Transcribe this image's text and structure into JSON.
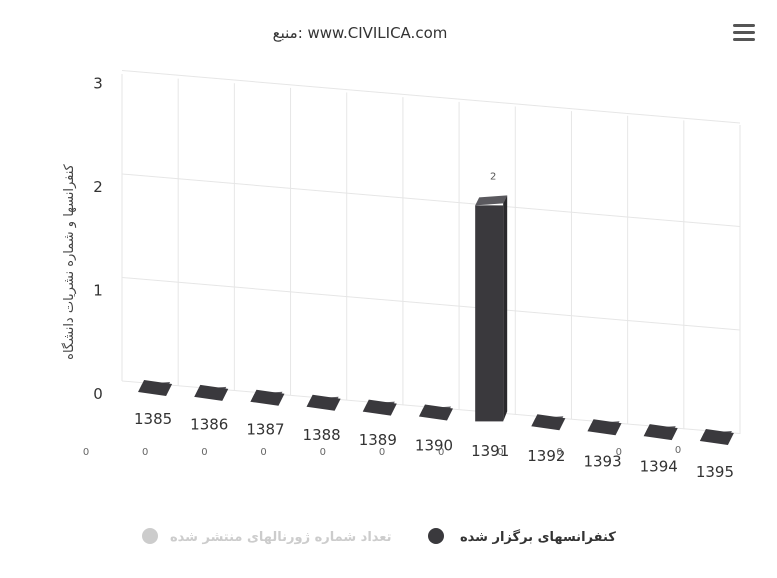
{
  "chart_data": {
    "type": "bar",
    "title": "منبع: www.CIVILICA.com",
    "ylabel": "کنفرانسها و شماره نشریات دانشگاه",
    "xlabel": "",
    "categories": [
      "1385",
      "1386",
      "1387",
      "1388",
      "1389",
      "1390",
      "1391",
      "1392",
      "1393",
      "1394",
      "1395"
    ],
    "y_ticks": [
      "0",
      "1",
      "2",
      "3"
    ],
    "ylim": [
      0,
      3
    ],
    "grid": true,
    "legend_position": "bottom",
    "series": [
      {
        "name": "کنفرانسهای برگزار شده",
        "values": [
          0,
          0,
          0,
          0,
          0,
          0,
          2,
          0,
          0,
          0,
          0
        ],
        "color": "#3a393d",
        "visible": true
      },
      {
        "name": "تعداد شماره ژورنالهای منتشر شده",
        "values": [
          0,
          0,
          0,
          0,
          0,
          0,
          0,
          0,
          0,
          0,
          0
        ],
        "color": "#cccccc",
        "visible": false
      }
    ],
    "data_labels": {
      "bar": [
        "2"
      ],
      "zero_row": [
        "0",
        "0",
        "0",
        "0",
        "0",
        "0",
        "0",
        "0",
        "0",
        "0",
        "0"
      ]
    }
  },
  "menu": {
    "icon": "menu-icon"
  }
}
